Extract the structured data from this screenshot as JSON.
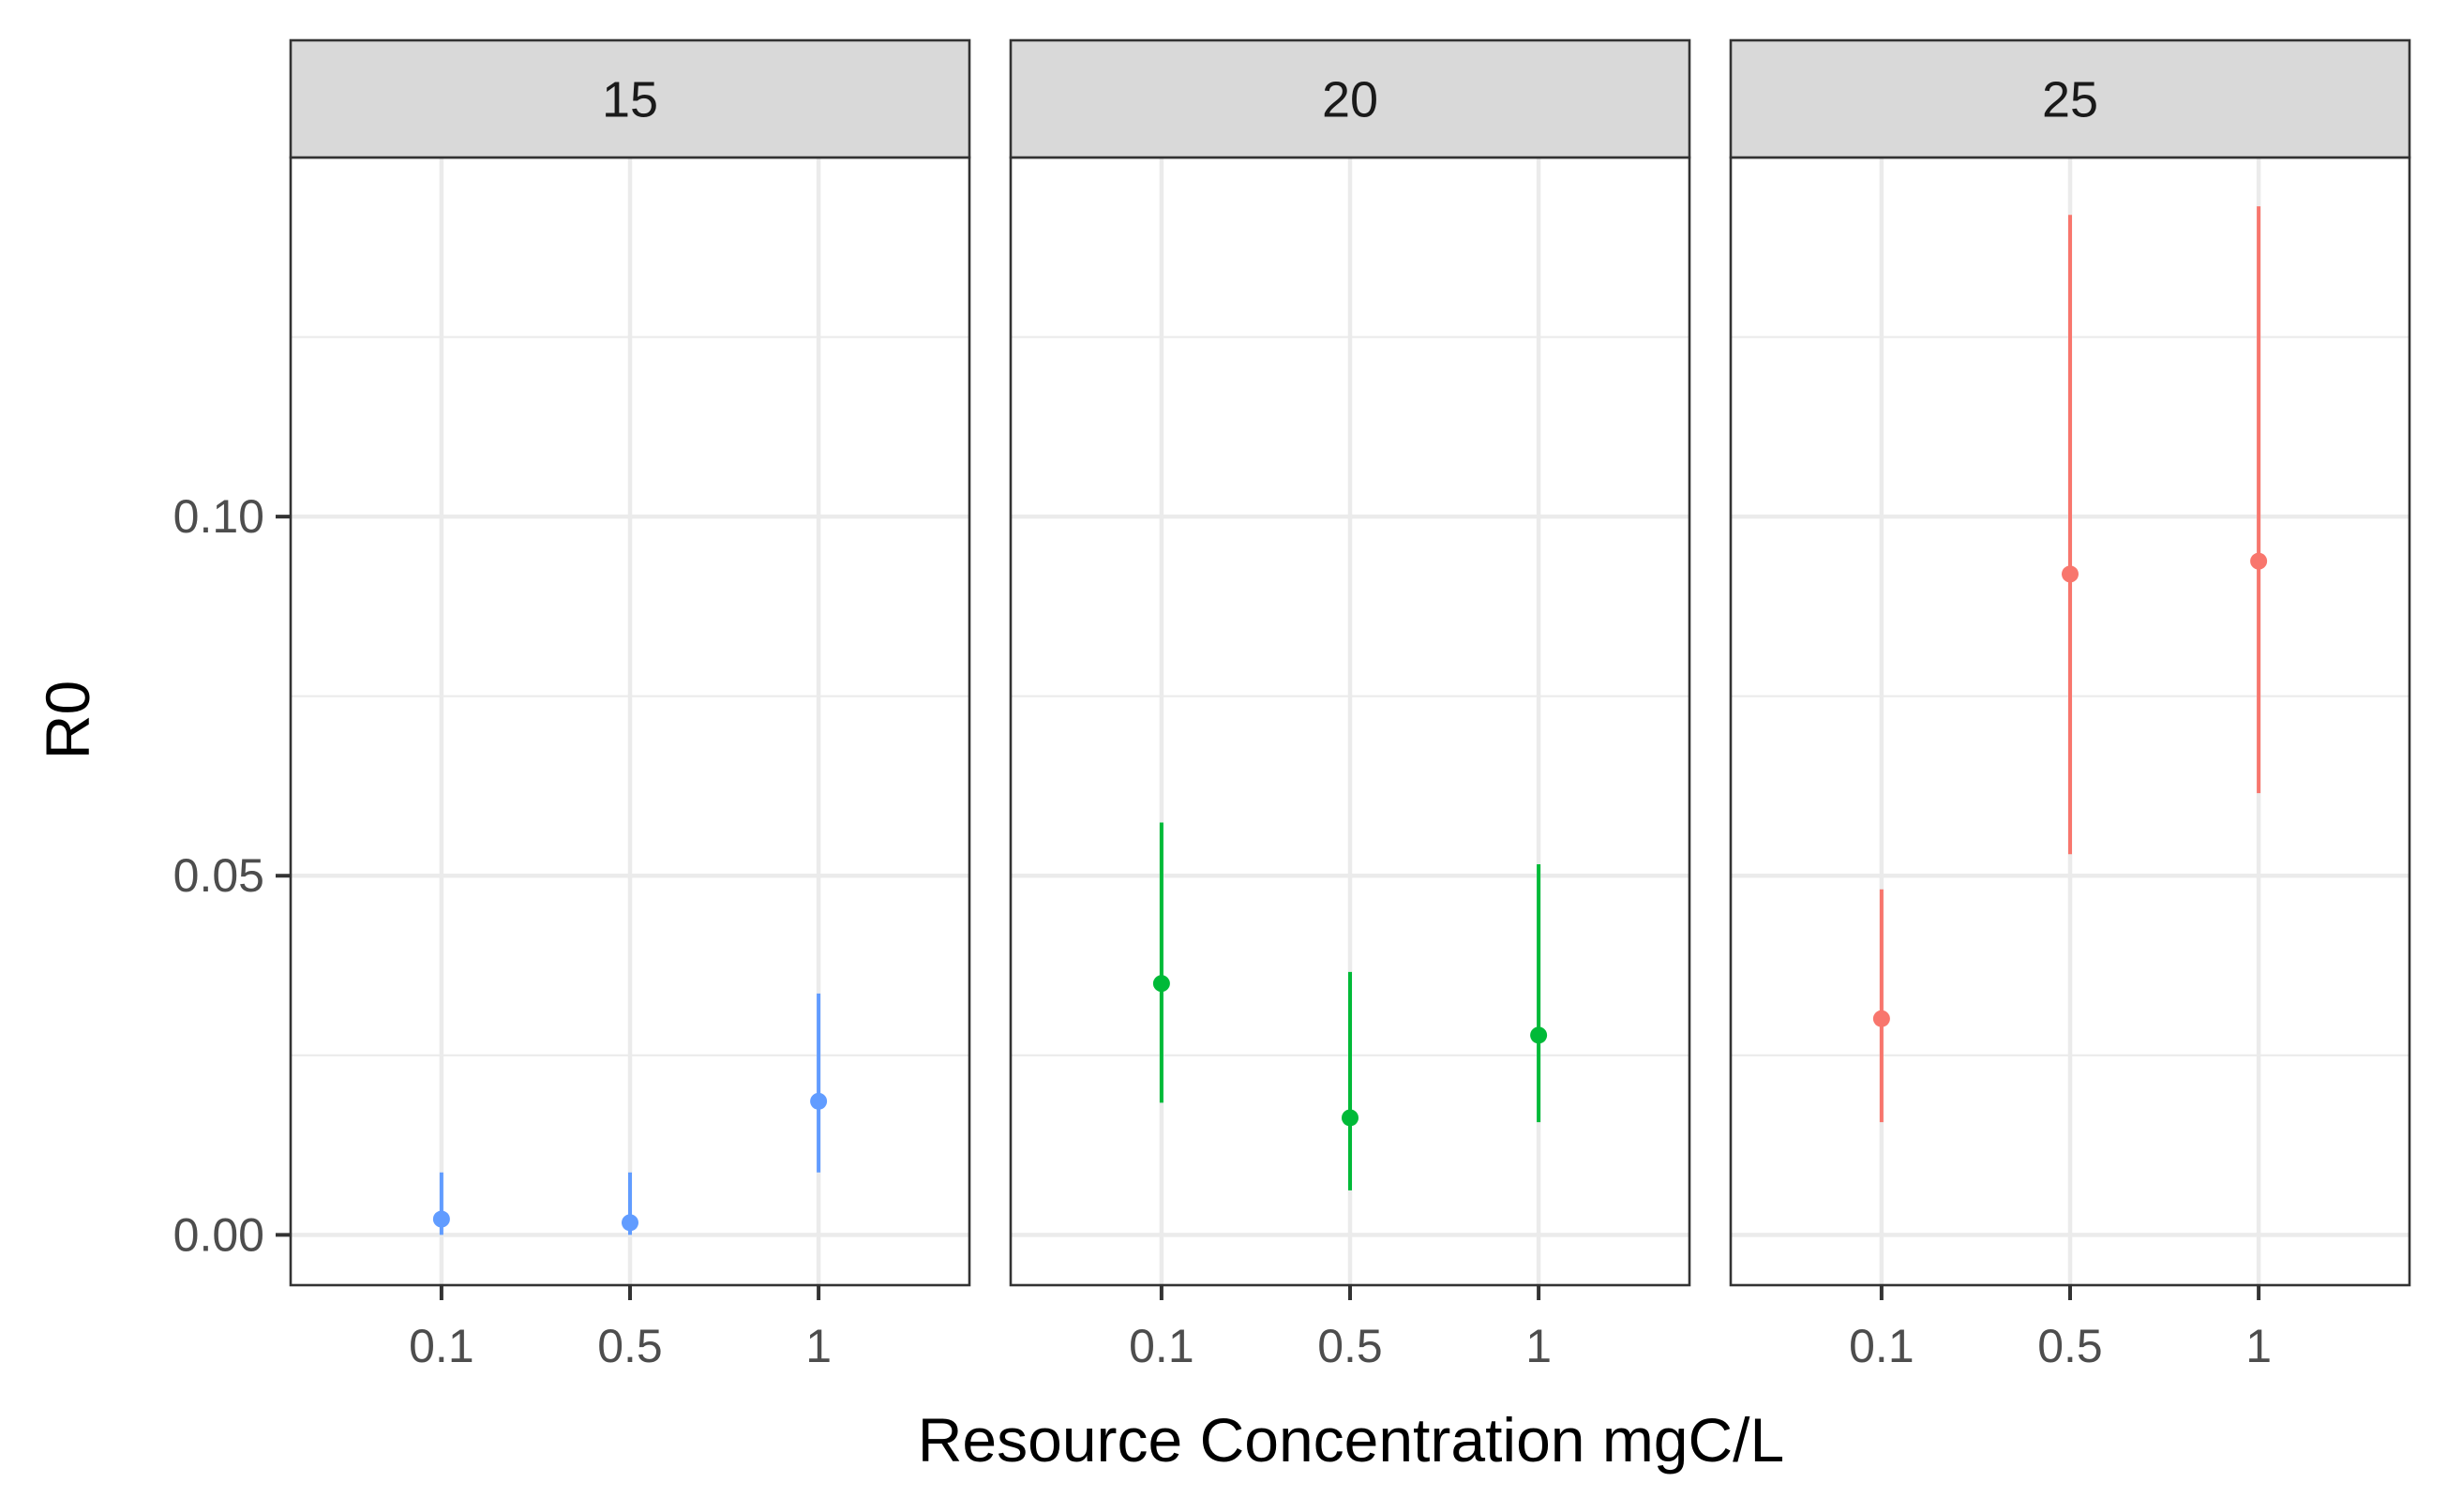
{
  "chart_data": {
    "type": "scatter",
    "subtype": "point-range faceted",
    "xlabel": "Resource Concentration mgC/L",
    "ylabel": "R0",
    "x_categories": [
      "0.1",
      "0.5",
      "1"
    ],
    "ylim": [
      -0.007,
      0.15
    ],
    "y_ticks": [
      0.0,
      0.05,
      0.1
    ],
    "y_tick_labels": [
      "0.00",
      "0.05",
      "0.10"
    ],
    "grid": true,
    "legend": "none",
    "facets": [
      {
        "label": "15",
        "color": "#619CFF",
        "points": [
          {
            "x": "0.1",
            "y": 0.0022,
            "ymin": 0.0,
            "ymax": 0.0087
          },
          {
            "x": "0.5",
            "y": 0.0017,
            "ymin": 0.0,
            "ymax": 0.0087
          },
          {
            "x": "1",
            "y": 0.0186,
            "ymin": 0.0087,
            "ymax": 0.0336
          }
        ]
      },
      {
        "label": "20",
        "color": "#00BA38",
        "points": [
          {
            "x": "0.1",
            "y": 0.035,
            "ymin": 0.0184,
            "ymax": 0.0574
          },
          {
            "x": "0.5",
            "y": 0.0163,
            "ymin": 0.0062,
            "ymax": 0.0366
          },
          {
            "x": "1",
            "y": 0.0278,
            "ymin": 0.0157,
            "ymax": 0.0516
          }
        ]
      },
      {
        "label": "25",
        "color": "#F8766D",
        "points": [
          {
            "x": "0.1",
            "y": 0.0301,
            "ymin": 0.0157,
            "ymax": 0.0481
          },
          {
            "x": "0.5",
            "y": 0.092,
            "ymin": 0.053,
            "ymax": 0.142
          },
          {
            "x": "1",
            "y": 0.0938,
            "ymin": 0.0615,
            "ymax": 0.1432
          }
        ]
      }
    ]
  }
}
